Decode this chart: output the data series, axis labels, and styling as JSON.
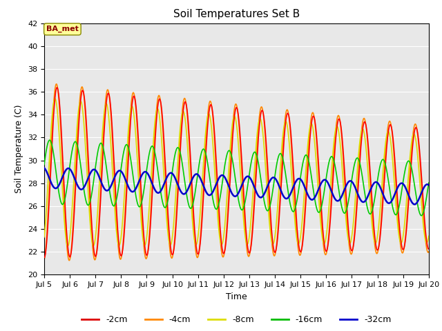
{
  "title": "Soil Temperatures Set B",
  "xlabel": "Time",
  "ylabel": "Soil Temperature (C)",
  "annotation": "BA_met",
  "ylim": [
    20,
    42
  ],
  "series_colors": {
    "-2cm": "#ff0000",
    "-4cm": "#ff8800",
    "-8cm": "#dddd00",
    "-16cm": "#00cc00",
    "-32cm": "#0000cc"
  },
  "bg_color": "#e8e8e8",
  "legend_colors": [
    "#dd0000",
    "#ff8800",
    "#dddd00",
    "#00bb00",
    "#0000cc"
  ],
  "legend_labels": [
    "-2cm",
    "-4cm",
    "-8cm",
    "-16cm",
    "-32cm"
  ]
}
